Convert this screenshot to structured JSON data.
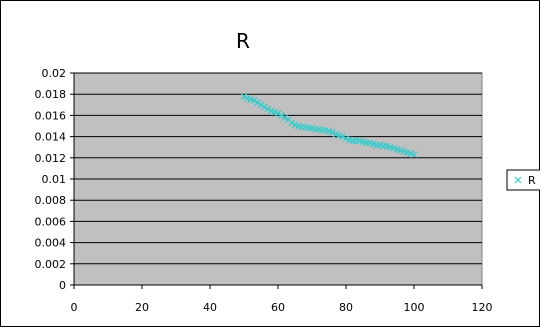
{
  "chart_data": {
    "type": "scatter",
    "title": "R",
    "xlabel": "",
    "ylabel": "",
    "xlim": [
      0,
      120
    ],
    "ylim": [
      0,
      0.02
    ],
    "x_ticks": [
      "0",
      "20",
      "40",
      "60",
      "80",
      "100",
      "120"
    ],
    "y_ticks": [
      "0",
      "0.002",
      "0.004",
      "0.006",
      "0.008",
      "0.01",
      "0.012",
      "0.014",
      "0.016",
      "0.018",
      "0.02"
    ],
    "grid": "horizontal",
    "legend_position": "right",
    "series": [
      {
        "name": "R",
        "marker": "x",
        "color": "#33CCCC",
        "x": [
          50,
          51,
          52,
          53,
          54,
          55,
          56,
          57,
          58,
          59,
          60,
          61,
          62,
          63,
          64,
          65,
          66,
          67,
          68,
          69,
          70,
          71,
          72,
          73,
          74,
          75,
          76,
          77,
          78,
          79,
          80,
          81,
          82,
          83,
          84,
          85,
          86,
          87,
          88,
          89,
          90,
          91,
          92,
          93,
          94,
          95,
          96,
          97,
          98,
          99,
          100
        ],
        "y": [
          0.0178,
          0.0176,
          0.0175,
          0.0174,
          0.0172,
          0.017,
          0.0168,
          0.0166,
          0.0164,
          0.0163,
          0.0162,
          0.016,
          0.0158,
          0.0156,
          0.0153,
          0.0151,
          0.015,
          0.0149,
          0.0149,
          0.0148,
          0.0148,
          0.0147,
          0.0147,
          0.0146,
          0.0146,
          0.0145,
          0.0144,
          0.0142,
          0.0141,
          0.014,
          0.0138,
          0.0137,
          0.0136,
          0.0136,
          0.0136,
          0.0135,
          0.0134,
          0.0134,
          0.0133,
          0.0132,
          0.0132,
          0.0131,
          0.0131,
          0.013,
          0.0129,
          0.0128,
          0.0127,
          0.0126,
          0.0125,
          0.0124,
          0.0123
        ]
      }
    ]
  },
  "colors": {
    "plot_background": "#c0c0c0",
    "gridline": "#000000",
    "marker": "#33cccc"
  }
}
